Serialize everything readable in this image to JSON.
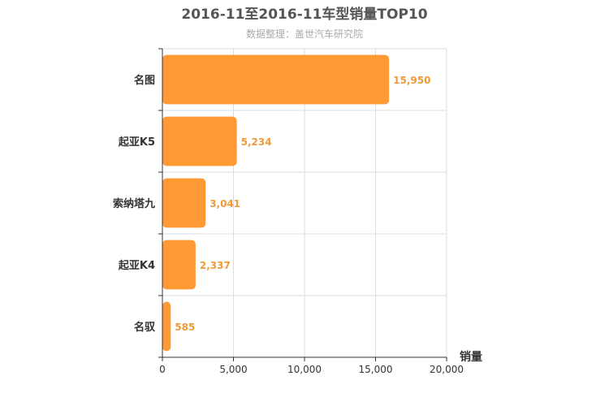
{
  "chart_data": {
    "type": "bar",
    "orientation": "horizontal",
    "title": "2016-11至2016-11车型销量TOP10",
    "subtitle": "数据整理：盖世汽车研究院",
    "xlabel": "销量",
    "ylabel": "",
    "categories": [
      "名图",
      "起亚K5",
      "索纳塔九",
      "起亚K4",
      "名驭"
    ],
    "values": [
      15950,
      5234,
      3041,
      2337,
      585
    ],
    "value_labels": [
      "15,950",
      "5,234",
      "3,041",
      "2,337",
      "585"
    ],
    "xlim": [
      0,
      20000
    ],
    "xticks": [
      0,
      5000,
      10000,
      15000,
      20000
    ],
    "xtick_labels": [
      "0",
      "5,000",
      "10,000",
      "15,000",
      "20,000"
    ],
    "grid": true,
    "legend": "none",
    "bar_color": "#ff9933",
    "label_color": "#ef9a3a"
  }
}
